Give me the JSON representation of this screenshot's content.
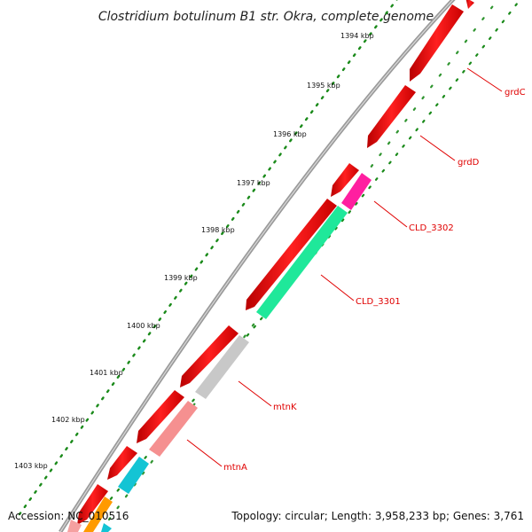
{
  "title": "Clostridium botulinum B1 str. Okra, complete genome",
  "footer": {
    "accession": "Accession: NC_010516",
    "summary": "Topology: circular; Length: 3,958,233 bp; Genes: 3,761"
  },
  "ticks": [
    "1394 kbp",
    "1395 kbp",
    "1396 kbp",
    "1397 kbp",
    "1398 kbp",
    "1399 kbp",
    "1400 kbp",
    "1401 kbp",
    "1402 kbp",
    "1403 kbp"
  ],
  "gene_labels": [
    "grdC",
    "grdD",
    "CLD_3302",
    "CLD_3301",
    "mtnK",
    "mtnA"
  ],
  "colors": {
    "cds_forward": "#ff0000",
    "cds_reverse": "#ff0000",
    "cld_3302": "#ff1fa0",
    "cld_3301": "#1fe89a",
    "mtnK": "#c8c8c8",
    "mtnA": "#f59090",
    "cyan_gene": "#14c4d4",
    "orange_gene": "#ff9a00",
    "backbone": "#8a8a8a",
    "tick_dots": "#1a8a1a",
    "label_lines": "#e00000"
  }
}
